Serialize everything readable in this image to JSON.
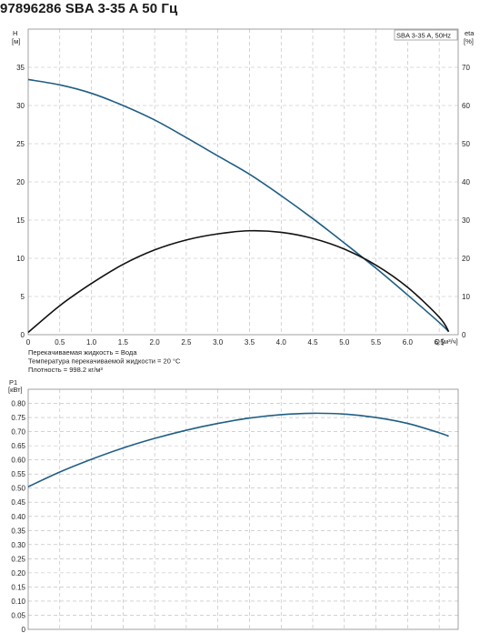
{
  "page": {
    "title": "97896286 SBA 3-35 A 50 Гц"
  },
  "chart_data": [
    {
      "type": "line",
      "legend": "SBA 3-35 A, 50Hz",
      "legend_placement": "top-right",
      "y_left_label": "H",
      "y_left_unit": "[м]",
      "y_right_label": "eta",
      "y_right_unit": "[%]",
      "x_label": "Q [м³/ч]",
      "xlim": [
        0,
        6.8
      ],
      "ylim": [
        0,
        40
      ],
      "y2lim": [
        0,
        80
      ],
      "x_ticks": [
        "0",
        "0.5",
        "1.0",
        "1.5",
        "2.0",
        "2.5",
        "3.0",
        "3.5",
        "4.0",
        "4.5",
        "5.0",
        "5.5",
        "6.0",
        "6.5"
      ],
      "x_tick_values": [
        0,
        0.5,
        1.0,
        1.5,
        2.0,
        2.5,
        3.0,
        3.5,
        4.0,
        4.5,
        5.0,
        5.5,
        6.0,
        6.5
      ],
      "y_ticks": [
        "0",
        "5",
        "10",
        "15",
        "20",
        "25",
        "30",
        "35"
      ],
      "y_tick_values": [
        0,
        5,
        10,
        15,
        20,
        25,
        30,
        35
      ],
      "y2_ticks": [
        "0",
        "10",
        "20",
        "30",
        "40",
        "50",
        "60",
        "70"
      ],
      "y2_tick_values": [
        0,
        10,
        20,
        30,
        40,
        50,
        60,
        70
      ],
      "grid": true,
      "series": [
        {
          "axis": "left",
          "color": "#1f5e84",
          "points": [
            [
              0,
              33.4
            ],
            [
              0.5,
              32.7
            ],
            [
              1.0,
              31.6
            ],
            [
              1.5,
              30.0
            ],
            [
              2.0,
              28.1
            ],
            [
              2.5,
              25.8
            ],
            [
              3.0,
              23.4
            ],
            [
              3.5,
              21.0
            ],
            [
              4.0,
              18.2
            ],
            [
              4.5,
              15.2
            ],
            [
              5.0,
              12.0
            ],
            [
              5.5,
              8.7
            ],
            [
              6.0,
              5.2
            ],
            [
              6.5,
              1.6
            ],
            [
              6.65,
              0.4
            ]
          ]
        },
        {
          "axis": "right",
          "color": "#111111",
          "points": [
            [
              0,
              0.6
            ],
            [
              0.5,
              7.6
            ],
            [
              1.0,
              13.4
            ],
            [
              1.5,
              18.4
            ],
            [
              2.0,
              22.2
            ],
            [
              2.5,
              24.8
            ],
            [
              3.0,
              26.4
            ],
            [
              3.5,
              27.2
            ],
            [
              4.0,
              26.8
            ],
            [
              4.5,
              25.2
            ],
            [
              5.0,
              22.4
            ],
            [
              5.5,
              18.2
            ],
            [
              6.0,
              12.4
            ],
            [
              6.5,
              4.6
            ],
            [
              6.65,
              0.8
            ]
          ]
        }
      ],
      "notes": [
        "Перекачиваемая жидкость = Вода",
        "Температура перекачиваемой жидкости = 20 °C",
        "Плотность = 998.2 кг/м³"
      ]
    },
    {
      "type": "line",
      "y_label": "P1",
      "y_unit": "[кВт]",
      "xlim": [
        0,
        6.8
      ],
      "ylim": [
        0,
        0.85
      ],
      "y_ticks": [
        "0",
        "0.05",
        "0.10",
        "0.15",
        "0.20",
        "0.25",
        "0.30",
        "0.35",
        "0.40",
        "0.45",
        "0.50",
        "0.55",
        "0.60",
        "0.65",
        "0.70",
        "0.75",
        "0.80"
      ],
      "y_tick_values": [
        0,
        0.05,
        0.1,
        0.15,
        0.2,
        0.25,
        0.3,
        0.35,
        0.4,
        0.45,
        0.5,
        0.55,
        0.6,
        0.65,
        0.7,
        0.75,
        0.8
      ],
      "grid": true,
      "series": [
        {
          "color": "#1f5e84",
          "points": [
            [
              0,
              0.505
            ],
            [
              0.5,
              0.557
            ],
            [
              1.0,
              0.602
            ],
            [
              1.5,
              0.642
            ],
            [
              2.0,
              0.676
            ],
            [
              2.5,
              0.705
            ],
            [
              3.0,
              0.729
            ],
            [
              3.5,
              0.748
            ],
            [
              4.0,
              0.76
            ],
            [
              4.5,
              0.765
            ],
            [
              5.0,
              0.762
            ],
            [
              5.5,
              0.75
            ],
            [
              6.0,
              0.729
            ],
            [
              6.5,
              0.696
            ],
            [
              6.65,
              0.684
            ]
          ]
        }
      ]
    }
  ]
}
